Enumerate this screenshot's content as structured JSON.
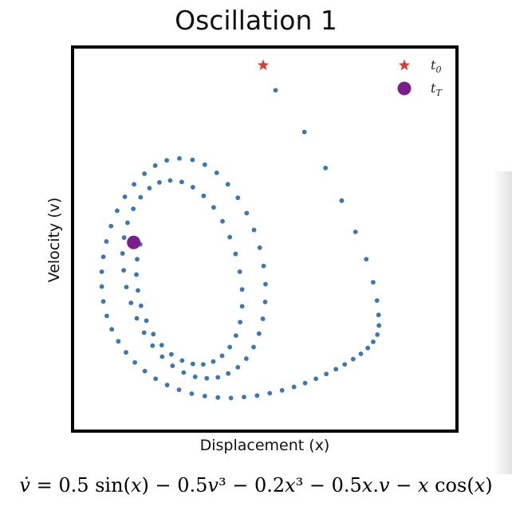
{
  "chart_data": {
    "type": "scatter",
    "title": "Oscillation 1",
    "xlabel": "Displacement (x)",
    "ylabel": "Velocity (v)",
    "xticks": [],
    "yticks": [],
    "grid": false,
    "legend_position": "top-right",
    "legend": [
      {
        "label_main": "t",
        "label_sub": "0",
        "marker": "star",
        "color": "#d0423a"
      },
      {
        "label_main": "t",
        "label_sub": "T",
        "marker": "circle",
        "color": "#7b1e8c"
      }
    ],
    "series": [
      {
        "marker": "dot",
        "color": "#3b76b5",
        "points": [
          [
            5.28,
            7.1
          ],
          [
            6.03,
            6.23
          ],
          [
            6.58,
            5.48
          ],
          [
            7.0,
            4.8
          ],
          [
            7.36,
            4.15
          ],
          [
            7.64,
            3.58
          ],
          [
            7.82,
            3.1
          ],
          [
            7.92,
            2.72
          ],
          [
            7.96,
            2.42
          ],
          [
            7.97,
            2.2
          ],
          [
            7.93,
            2.01
          ],
          [
            7.82,
            1.86
          ],
          [
            7.68,
            1.73
          ],
          [
            7.5,
            1.61
          ],
          [
            7.3,
            1.5
          ],
          [
            7.08,
            1.39
          ],
          [
            6.85,
            1.29
          ],
          [
            6.6,
            1.19
          ],
          [
            6.33,
            1.09
          ],
          [
            6.05,
            1.0
          ],
          [
            5.76,
            0.92
          ],
          [
            5.45,
            0.85
          ],
          [
            5.13,
            0.79
          ],
          [
            4.8,
            0.74
          ],
          [
            4.46,
            0.71
          ],
          [
            4.12,
            0.69
          ],
          [
            3.78,
            0.7
          ],
          [
            3.44,
            0.73
          ],
          [
            3.1,
            0.78
          ],
          [
            2.77,
            0.86
          ],
          [
            2.46,
            0.96
          ],
          [
            2.16,
            1.09
          ],
          [
            1.88,
            1.25
          ],
          [
            1.62,
            1.43
          ],
          [
            1.39,
            1.64
          ],
          [
            1.19,
            1.87
          ],
          [
            1.02,
            2.12
          ],
          [
            0.89,
            2.4
          ],
          [
            0.8,
            2.7
          ],
          [
            0.76,
            3.01
          ],
          [
            0.76,
            3.32
          ],
          [
            0.8,
            3.63
          ],
          [
            0.88,
            3.95
          ],
          [
            1.0,
            4.27
          ],
          [
            1.16,
            4.59
          ],
          [
            1.36,
            4.88
          ],
          [
            1.6,
            5.14
          ],
          [
            1.87,
            5.36
          ],
          [
            2.15,
            5.53
          ],
          [
            2.45,
            5.64
          ],
          [
            2.78,
            5.68
          ],
          [
            3.12,
            5.65
          ],
          [
            3.44,
            5.55
          ],
          [
            3.75,
            5.38
          ],
          [
            4.04,
            5.14
          ],
          [
            4.3,
            4.86
          ],
          [
            4.53,
            4.54
          ],
          [
            4.72,
            4.19
          ],
          [
            4.87,
            3.82
          ],
          [
            4.97,
            3.44
          ],
          [
            5.02,
            3.06
          ],
          [
            5.01,
            2.69
          ],
          [
            4.95,
            2.34
          ],
          [
            4.85,
            2.03
          ],
          [
            4.71,
            1.75
          ],
          [
            4.52,
            1.51
          ],
          [
            4.3,
            1.33
          ],
          [
            4.05,
            1.2
          ],
          [
            3.78,
            1.12
          ],
          [
            3.49,
            1.1
          ],
          [
            3.19,
            1.13
          ],
          [
            2.89,
            1.22
          ],
          [
            2.6,
            1.36
          ],
          [
            2.33,
            1.55
          ],
          [
            2.08,
            1.78
          ],
          [
            1.86,
            2.05
          ],
          [
            1.67,
            2.35
          ],
          [
            1.52,
            2.67
          ],
          [
            1.4,
            3.0
          ],
          [
            1.33,
            3.35
          ],
          [
            1.3,
            3.7
          ],
          [
            1.34,
            4.03
          ],
          [
            1.43,
            4.34
          ],
          [
            1.58,
            4.63
          ],
          [
            1.77,
            4.87
          ],
          [
            2.0,
            5.06
          ],
          [
            2.26,
            5.18
          ],
          [
            2.54,
            5.22
          ],
          [
            2.84,
            5.19
          ],
          [
            3.13,
            5.08
          ],
          [
            3.41,
            4.9
          ],
          [
            3.67,
            4.66
          ],
          [
            3.9,
            4.37
          ],
          [
            4.09,
            4.04
          ],
          [
            4.24,
            3.69
          ],
          [
            4.35,
            3.32
          ],
          [
            4.41,
            2.95
          ],
          [
            4.41,
            2.6
          ],
          [
            4.36,
            2.27
          ],
          [
            4.25,
            1.99
          ],
          [
            4.09,
            1.75
          ],
          [
            3.89,
            1.57
          ],
          [
            3.66,
            1.45
          ],
          [
            3.4,
            1.39
          ],
          [
            3.13,
            1.4
          ],
          [
            2.85,
            1.47
          ],
          [
            2.57,
            1.6
          ],
          [
            2.32,
            1.79
          ],
          [
            2.1,
            2.02
          ],
          [
            1.92,
            2.3
          ],
          [
            1.78,
            2.61
          ],
          [
            1.7,
            2.93
          ],
          [
            1.66,
            3.26
          ],
          [
            1.68,
            3.58
          ],
          [
            1.76,
            3.89
          ]
        ]
      },
      {
        "name": "t_0",
        "marker": "star",
        "color": "#d0423a",
        "points": [
          [
            4.96,
            7.62
          ]
        ]
      },
      {
        "name": "t_T",
        "marker": "circle",
        "color": "#7b1e8c",
        "points": [
          [
            1.59,
            3.93
          ]
        ]
      }
    ],
    "xlim": [
      0,
      10
    ],
    "ylim": [
      0,
      8
    ]
  },
  "equation": {
    "lhs": "v̇",
    "eq": " = 0.5 sin(",
    "x1": "x",
    "t1": ") − 0.5",
    "v1": "v",
    "t2": "³ − 0.2",
    "x2": "x",
    "t3": "³ − 0.5",
    "x3": "x",
    "t4": ".",
    "v2": "v",
    "t5": " − ",
    "x4": "x",
    "t6": " cos(",
    "x5": "x",
    "t7": ")"
  }
}
